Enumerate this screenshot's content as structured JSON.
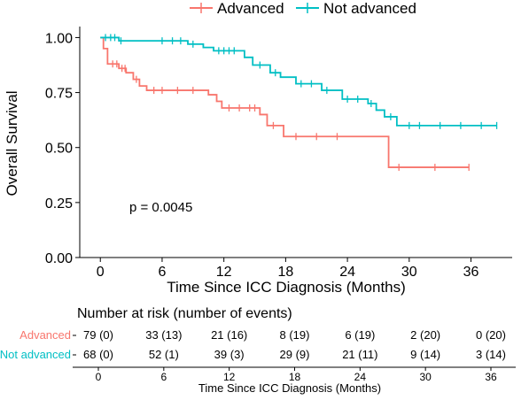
{
  "chart_data": {
    "type": "line",
    "subtype": "kaplan-meier",
    "xlabel": "Time Since ICC Diagnosis (Months)",
    "ylabel": "Overall Survival",
    "xlim": [
      -2,
      40
    ],
    "ylim": [
      0,
      1.05
    ],
    "xticks": [
      0,
      6,
      12,
      18,
      24,
      30,
      36
    ],
    "yticks": [
      0,
      0.25,
      0.5,
      0.75,
      1.0
    ],
    "ytick_labels": [
      "0.00",
      "0.25",
      "0.50",
      "0.75",
      "1.00"
    ],
    "legend_position": "top",
    "annotation": "p = 0.0045",
    "series": [
      {
        "name": "Advanced",
        "color": "#F8766D",
        "steps": [
          [
            0,
            1.0
          ],
          [
            0.3,
            0.95
          ],
          [
            0.7,
            0.88
          ],
          [
            1.8,
            0.86
          ],
          [
            2.5,
            0.84
          ],
          [
            3.2,
            0.81
          ],
          [
            3.8,
            0.78
          ],
          [
            4.5,
            0.76
          ],
          [
            10.5,
            0.74
          ],
          [
            11.3,
            0.71
          ],
          [
            11.8,
            0.68
          ],
          [
            15.5,
            0.65
          ],
          [
            16.2,
            0.6
          ],
          [
            17.8,
            0.55
          ],
          [
            28,
            0.41
          ],
          [
            35.8,
            0.41
          ]
        ],
        "censors": [
          [
            1.2,
            0.88
          ],
          [
            1.6,
            0.88
          ],
          [
            2.1,
            0.86
          ],
          [
            2.4,
            0.86
          ],
          [
            3.5,
            0.81
          ],
          [
            5.2,
            0.76
          ],
          [
            6.0,
            0.76
          ],
          [
            7.5,
            0.76
          ],
          [
            9.0,
            0.76
          ],
          [
            12.5,
            0.68
          ],
          [
            13.5,
            0.68
          ],
          [
            14.5,
            0.68
          ],
          [
            15.0,
            0.68
          ],
          [
            16.8,
            0.6
          ],
          [
            19.0,
            0.55
          ],
          [
            21.0,
            0.55
          ],
          [
            23.0,
            0.55
          ],
          [
            29.0,
            0.41
          ],
          [
            32.5,
            0.41
          ],
          [
            35.8,
            0.41
          ]
        ]
      },
      {
        "name": "Not advanced",
        "color": "#00BFC4",
        "steps": [
          [
            0,
            1.0
          ],
          [
            1.8,
            0.985
          ],
          [
            8.5,
            0.97
          ],
          [
            10.0,
            0.955
          ],
          [
            11.0,
            0.94
          ],
          [
            14.0,
            0.91
          ],
          [
            14.8,
            0.875
          ],
          [
            16.5,
            0.84
          ],
          [
            17.5,
            0.82
          ],
          [
            19.0,
            0.79
          ],
          [
            21.5,
            0.76
          ],
          [
            23.5,
            0.72
          ],
          [
            26.0,
            0.7
          ],
          [
            26.8,
            0.67
          ],
          [
            27.6,
            0.64
          ],
          [
            28.8,
            0.6
          ],
          [
            38.5,
            0.6
          ]
        ],
        "censors": [
          [
            0.5,
            1.0
          ],
          [
            1.0,
            1.0
          ],
          [
            1.4,
            1.0
          ],
          [
            2.0,
            0.985
          ],
          [
            6.0,
            0.985
          ],
          [
            7.0,
            0.985
          ],
          [
            7.8,
            0.985
          ],
          [
            9.0,
            0.97
          ],
          [
            11.5,
            0.94
          ],
          [
            12.0,
            0.94
          ],
          [
            12.5,
            0.94
          ],
          [
            13.0,
            0.94
          ],
          [
            15.5,
            0.875
          ],
          [
            17.0,
            0.84
          ],
          [
            19.5,
            0.79
          ],
          [
            20.5,
            0.79
          ],
          [
            22.0,
            0.76
          ],
          [
            24.0,
            0.72
          ],
          [
            25.0,
            0.72
          ],
          [
            26.3,
            0.7
          ],
          [
            28.2,
            0.64
          ],
          [
            30.0,
            0.6
          ],
          [
            31.0,
            0.6
          ],
          [
            33.0,
            0.6
          ],
          [
            35.0,
            0.6
          ],
          [
            37.0,
            0.6
          ],
          [
            38.5,
            0.6
          ]
        ]
      }
    ],
    "risk_table": {
      "title": "Number at risk (number of events)",
      "xlabel": "Time Since ICC Diagnosis (Months)",
      "rows": [
        {
          "label": "Advanced",
          "color": "#F8766D",
          "cells": [
            "79 (0)",
            "33 (13)",
            "21 (16)",
            "8 (19)",
            "6 (19)",
            "2 (20)",
            "0 (20)"
          ]
        },
        {
          "label": "Not advanced",
          "color": "#00BFC4",
          "cells": [
            "68 (0)",
            "52 (1)",
            "39 (3)",
            "29 (9)",
            "21 (11)",
            "9 (14)",
            "3 (14)"
          ]
        }
      ]
    }
  }
}
